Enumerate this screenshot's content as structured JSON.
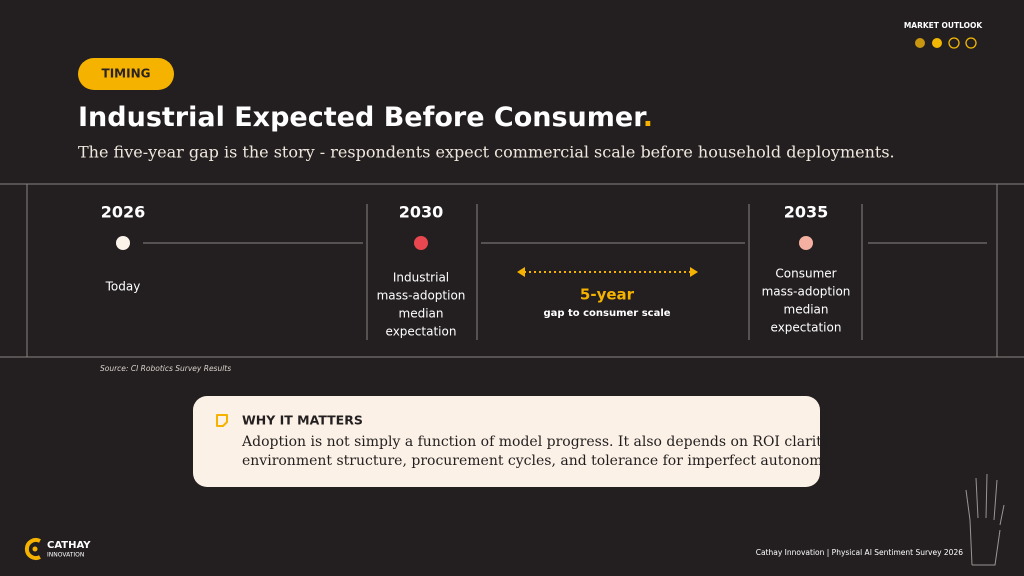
{
  "header": {
    "section": "MARKET OUTLOOK",
    "tag": "TIMING",
    "title": "Industrial Expected Before Consumer",
    "title_punct": ".",
    "subtitle": "The five-year gap is the story - respondents expect commercial scale before household deployments."
  },
  "timeline": {
    "milestones": [
      {
        "year": "2026",
        "label": [
          "Today"
        ]
      },
      {
        "year": "2030",
        "label": [
          "Industrial",
          "mass-adoption",
          "median",
          "expectation"
        ]
      },
      {
        "year": "2035",
        "label": [
          "Consumer",
          "mass-adoption",
          "median",
          "expectation"
        ]
      }
    ],
    "gap": {
      "title": "5-year",
      "text": "gap to consumer scale"
    }
  },
  "source": "Source: CI Robotics Survey Results",
  "callout": {
    "title": "WHY IT MATTERS",
    "lines": [
      "Adoption is not simply a function of model progress. It also depends on ROI clarity,",
      "environment structure, procurement cycles, and tolerance for imperfect autonomy."
    ]
  },
  "footer": {
    "logo_main": "CATHAY",
    "logo_sub": "INNOVATION",
    "text": "Cathay Innovation | Physical AI Sentiment Survey 2026"
  }
}
